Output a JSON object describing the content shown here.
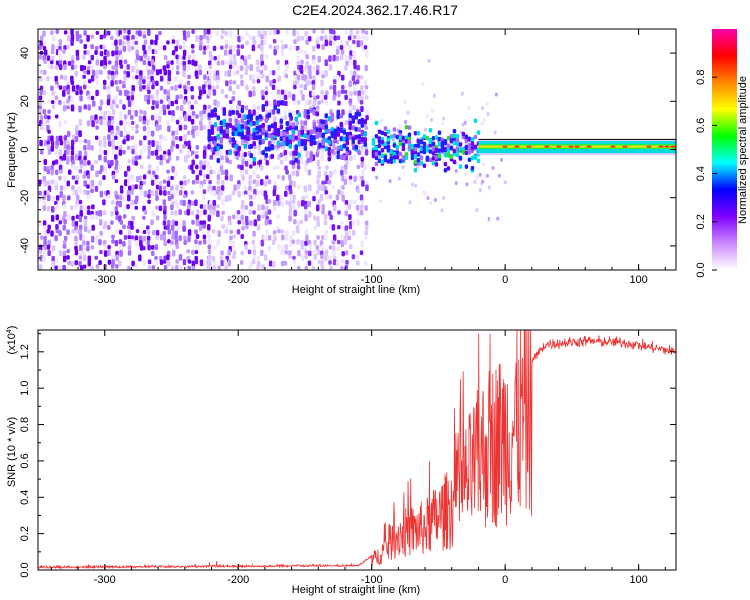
{
  "title": "C2E4.2024.362.17.46.R17",
  "chart_data": [
    {
      "type": "heatmap",
      "title": "C2E4.2024.362.17.46.R17",
      "xlabel": "Height of straight line (km)",
      "ylabel": "Frequency (Hz)",
      "xlim": [
        -350,
        128
      ],
      "ylim": [
        -50,
        50
      ],
      "xticks": [
        -300,
        -200,
        -100,
        0,
        100
      ],
      "yticks": [
        -40,
        -20,
        0,
        20,
        40
      ],
      "colorbar": {
        "label": "Normalized spectral amplitude",
        "range": [
          0,
          1
        ],
        "ticks": [
          "0.0",
          "0.2",
          "0.4",
          "0.6",
          "0.8"
        ],
        "colors": [
          "#ffffff",
          "#cc88ff",
          "#7f00ff",
          "#0000ff",
          "#00ffff",
          "#00ff00",
          "#ffff00",
          "#ff8800",
          "#ff0000",
          "#ff00aa"
        ]
      },
      "regions": [
        {
          "x": [
            -350,
            -223
          ],
          "f": [
            -50,
            50
          ],
          "note": "noise, sparse purple",
          "amplitude": 0.12
        },
        {
          "x": [
            -223,
            -104
          ],
          "f": [
            -50,
            50
          ],
          "note": "noise, sparse purple",
          "amplitude": 0.08
        },
        {
          "x": [
            -223,
            -104
          ],
          "f": [
            -4,
            18
          ],
          "note": "signal band",
          "amplitude": 0.22
        },
        {
          "x": [
            -100,
            -20
          ],
          "f": [
            -6,
            10
          ],
          "note": "signal band",
          "amplitude": 0.45
        },
        {
          "x": [
            -20,
            128
          ],
          "f": [
            -1,
            3
          ],
          "note": "narrow carrier",
          "amplitude": 0.9
        }
      ]
    },
    {
      "type": "line",
      "xlabel": "Height of straight line (km)",
      "ylabel": "SNR (10 * v/v)",
      "y_multiplier": "(x10",
      "y_multiplier_exp": "4",
      "xlim": [
        -350,
        128
      ],
      "ylim": [
        0,
        1.32
      ],
      "xticks": [
        -300,
        -200,
        -100,
        0,
        100
      ],
      "yticks": [
        "0.0",
        "0.2",
        "0.4",
        "0.6",
        "0.8",
        "1.0",
        "1.2"
      ],
      "color": "#ee3333",
      "envelope": [
        {
          "x": -350,
          "y": 0.01
        },
        {
          "x": -220,
          "y": 0.015
        },
        {
          "x": -110,
          "y": 0.02
        },
        {
          "x": -95,
          "y": 0.1
        },
        {
          "x": -80,
          "y": 0.25
        },
        {
          "x": -60,
          "y": 0.3
        },
        {
          "x": -40,
          "y": 0.45
        },
        {
          "x": -25,
          "y": 0.7
        },
        {
          "x": -15,
          "y": 0.85
        },
        {
          "x": 0,
          "y": 0.95
        },
        {
          "x": 15,
          "y": 1.1
        },
        {
          "x": 30,
          "y": 1.24
        },
        {
          "x": 60,
          "y": 1.26
        },
        {
          "x": 90,
          "y": 1.25
        },
        {
          "x": 128,
          "y": 1.2
        }
      ]
    }
  ]
}
